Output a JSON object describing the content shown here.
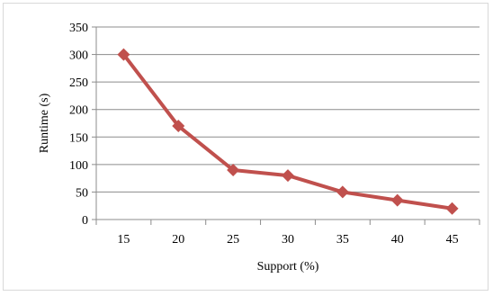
{
  "chart_data": {
    "type": "line",
    "title": "",
    "xlabel": "Support (%)",
    "ylabel": "Runtime (s)",
    "x": [
      15,
      20,
      25,
      30,
      35,
      40,
      45
    ],
    "ylim": [
      0,
      350
    ],
    "yticks": [
      0,
      50,
      100,
      150,
      200,
      250,
      300,
      350
    ],
    "grid": true,
    "legend": "none",
    "series": [
      {
        "values": [
          300,
          170,
          90,
          80,
          50,
          35,
          20
        ],
        "color": "#C0504D",
        "marker": "diamond"
      }
    ]
  }
}
